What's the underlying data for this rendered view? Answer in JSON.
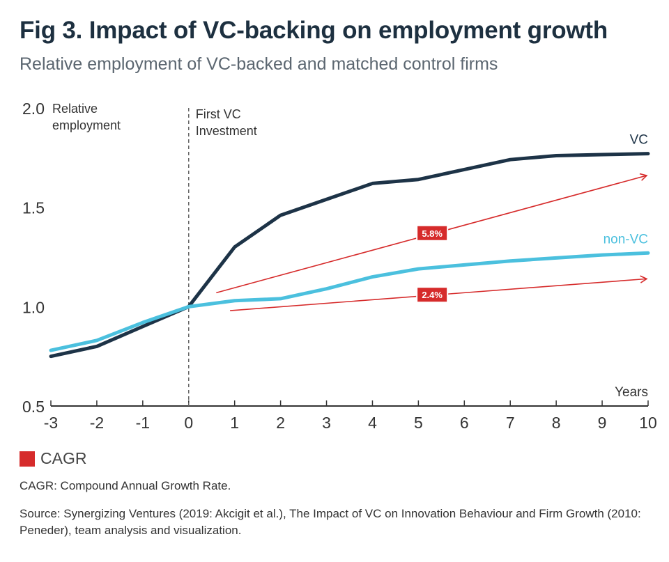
{
  "title": "Fig 3. Impact of VC-backing on employment growth",
  "subtitle": "Relative employment of VC-backed and matched control firms",
  "chart_data": {
    "type": "line",
    "xlabel": "Years",
    "ylabel": "Relative employment",
    "x": [
      -3,
      -2,
      -1,
      0,
      1,
      2,
      3,
      4,
      5,
      6,
      7,
      8,
      9,
      10
    ],
    "xlim": [
      -3,
      10
    ],
    "ylim": [
      0.5,
      2.0
    ],
    "yticks": [
      "0.5",
      "1.0",
      "1.5",
      "2.0"
    ],
    "series": [
      {
        "name": "VC",
        "color": "#1d3347",
        "values": [
          0.75,
          0.8,
          0.9,
          1.0,
          1.3,
          1.46,
          1.54,
          1.62,
          1.64,
          1.69,
          1.74,
          1.76,
          1.765,
          1.77
        ]
      },
      {
        "name": "non-VC",
        "color": "#4bc0de",
        "values": [
          0.78,
          0.83,
          0.92,
          1.0,
          1.03,
          1.04,
          1.09,
          1.15,
          1.19,
          1.21,
          1.23,
          1.245,
          1.26,
          1.27
        ]
      }
    ],
    "event_line": {
      "x": 0,
      "label_line1": "First VC",
      "label_line2": "Investment"
    },
    "annotations": [
      {
        "label": "5.8%",
        "color": "#d62b2b",
        "from": [
          0.6,
          1.07
        ],
        "to": [
          10,
          1.66
        ],
        "label_at": [
          5.3,
          1.37
        ]
      },
      {
        "label": "2.4%",
        "color": "#d62b2b",
        "from": [
          0.9,
          0.98
        ],
        "to": [
          10,
          1.14
        ],
        "label_at": [
          5.3,
          1.06
        ]
      }
    ]
  },
  "legend": {
    "label": "CAGR",
    "color": "#d62b2b"
  },
  "note": "CAGR: Compound Annual Growth Rate.",
  "source": "Source: Synergizing Ventures (2019: Akcigit et al.), The Impact of VC on Innovation Behaviour and Firm Growth (2010: Peneder), team analysis and visualization."
}
